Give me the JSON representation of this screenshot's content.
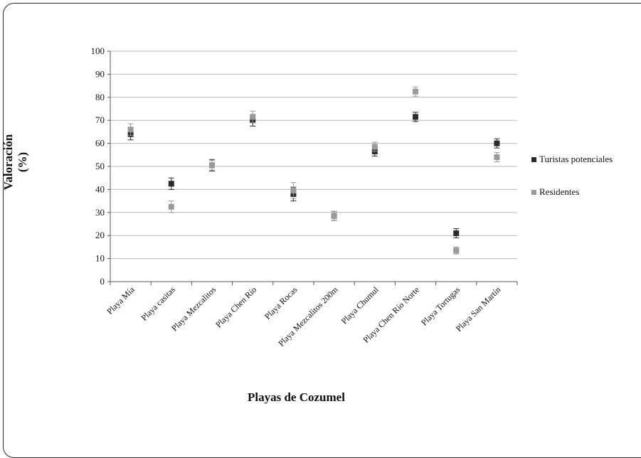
{
  "chart_data": {
    "type": "scatter",
    "categories": [
      "Playa Mía",
      "Playa casitas",
      "Playa Mezcalitos",
      "Playa Chen Río",
      "Playa Rocas",
      "Playa Mezcalitos 200m",
      "Playa Chumul",
      "Playa Chen Río Norte",
      "Playa Tortugas",
      "Playa San Martín"
    ],
    "series": [
      {
        "name": "Turistas potenciales",
        "color": "#2a2a2a",
        "values": [
          64,
          42.5,
          50.5,
          70,
          38,
          28.5,
          56.5,
          71.5,
          21,
          60
        ],
        "error": [
          2.5,
          2.5,
          2.5,
          2.5,
          3,
          2,
          2,
          2,
          2,
          2
        ]
      },
      {
        "name": "Residentes",
        "color": "#9a9a9a",
        "values": [
          66,
          32.5,
          50.5,
          71.5,
          39.5,
          28.5,
          58.5,
          82.5,
          13.5,
          54
        ],
        "error": [
          2.5,
          2.5,
          2,
          2.5,
          3.5,
          2,
          2,
          2,
          1.5,
          2
        ]
      }
    ],
    "yticks": [
      0,
      10,
      20,
      30,
      40,
      50,
      60,
      70,
      80,
      90,
      100
    ],
    "ylim": [
      0,
      100
    ],
    "ylabel_line1": "Valoración",
    "ylabel_line2": "(%)",
    "xlabel": "Playas de Cozumel",
    "grid": true,
    "legend_position": "right"
  }
}
